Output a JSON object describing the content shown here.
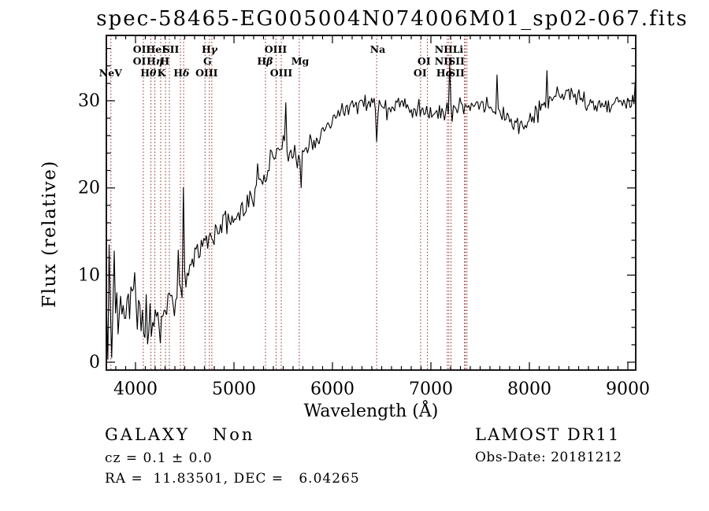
{
  "title": "spec-58465-EG005004N074006M01_sp02-067.fits",
  "footer": {
    "class_label": "GALAXY   Non",
    "cz_label": "cz = 0.1 ± 0.0",
    "radec_label": "RA =  11.83501, DEC =   6.04265",
    "survey": "LAMOST DR11",
    "obsdate": "Obs-Date: 20181212"
  },
  "colors": {
    "trace": "#000000",
    "line_marker": "#8b2424",
    "axis": "#000000",
    "background": "#ffffff"
  },
  "chart_data": {
    "type": "line",
    "title": "spec-58465-EG005004N074006M01_sp02-067.fits",
    "xlabel": "Wavelength (Å)",
    "ylabel": "Flux (relative)",
    "xlim": [
      3704,
      9080
    ],
    "ylim": [
      -0.9,
      37.5
    ],
    "xticks": [
      4000,
      5000,
      6000,
      7000,
      8000,
      9000
    ],
    "yticks": [
      0,
      10,
      20,
      30
    ],
    "x_minor_step": 100,
    "y_minor_step": 2,
    "grid": false,
    "legend": "none",
    "seed": 987123,
    "spectral_vlines": [
      3750,
      4079,
      4157,
      4197,
      4256,
      4305,
      4344,
      4456,
      4489,
      4706,
      4750,
      4775,
      5320,
      5427,
      5480,
      5663,
      6449,
      6895,
      6965,
      7166,
      7182,
      7204,
      7341,
      7351,
      7366
    ],
    "spectral_labels": [
      {
        "text": "OII",
        "row": 1,
        "x": 4064
      },
      {
        "text": "HeI",
        "row": 1,
        "x": 4210
      },
      {
        "text": "SII",
        "row": 1,
        "x": 4360
      },
      {
        "text": "Hγ",
        "row": 1,
        "x": 4752
      },
      {
        "text": "OIII",
        "row": 1,
        "x": 5424
      },
      {
        "text": "Na",
        "row": 1,
        "x": 6460
      },
      {
        "text": "NII",
        "row": 1,
        "x": 7130
      },
      {
        "text": "Li",
        "row": 1,
        "x": 7275
      },
      {
        "text": "OI",
        "row": 2,
        "x": 4040
      },
      {
        "text": "Hη",
        "row": 2,
        "x": 4195
      },
      {
        "text": "H",
        "row": 2,
        "x": 4298
      },
      {
        "text": "G",
        "row": 2,
        "x": 4730
      },
      {
        "text": "Hβ",
        "row": 2,
        "x": 5315
      },
      {
        "text": "Mg",
        "row": 2,
        "x": 5672
      },
      {
        "text": "OI",
        "row": 2,
        "x": 6930
      },
      {
        "text": "NII",
        "row": 2,
        "x": 7130
      },
      {
        "text": "SII",
        "row": 2,
        "x": 7260
      },
      {
        "text": "NeV",
        "row": 3,
        "x": 3746
      },
      {
        "text": "Hθ",
        "row": 3,
        "x": 4130
      },
      {
        "text": "K",
        "row": 3,
        "x": 4264
      },
      {
        "text": "Hδ",
        "row": 3,
        "x": 4466
      },
      {
        "text": "OIII",
        "row": 3,
        "x": 4722
      },
      {
        "text": "OIII",
        "row": 3,
        "x": 5480
      },
      {
        "text": "OI",
        "row": 3,
        "x": 6890
      },
      {
        "text": "Hα",
        "row": 3,
        "x": 7140
      },
      {
        "text": "SII",
        "row": 3,
        "x": 7260
      }
    ],
    "envelope": [
      [
        3710,
        5.5,
        5.5
      ],
      [
        3760,
        6.5,
        4.5
      ],
      [
        3820,
        7.0,
        3.2
      ],
      [
        3900,
        7.2,
        2.8
      ],
      [
        3990,
        6.8,
        2.6
      ],
      [
        4060,
        5.8,
        2.2
      ],
      [
        4130,
        5.2,
        2.2
      ],
      [
        4200,
        4.8,
        2.4
      ],
      [
        4270,
        5.2,
        2.2
      ],
      [
        4340,
        6.8,
        2.0
      ],
      [
        4400,
        7.8,
        1.8
      ],
      [
        4470,
        8.8,
        1.8
      ],
      [
        4540,
        10.5,
        1.5
      ],
      [
        4620,
        11.8,
        1.4
      ],
      [
        4700,
        13.2,
        1.5
      ],
      [
        4780,
        14.8,
        1.4
      ],
      [
        4860,
        15.6,
        1.3
      ],
      [
        4940,
        16.4,
        1.3
      ],
      [
        5020,
        16.8,
        1.3
      ],
      [
        5100,
        17.6,
        1.4
      ],
      [
        5180,
        19.2,
        1.5
      ],
      [
        5260,
        21.2,
        1.5
      ],
      [
        5330,
        22.3,
        1.4
      ],
      [
        5400,
        23.8,
        1.2
      ],
      [
        5470,
        24.6,
        1.1
      ],
      [
        5540,
        24.4,
        1.2
      ],
      [
        5610,
        24.0,
        1.3
      ],
      [
        5680,
        23.2,
        1.3
      ],
      [
        5750,
        24.8,
        1.3
      ],
      [
        5830,
        25.6,
        1.2
      ],
      [
        5910,
        26.6,
        1.1
      ],
      [
        6000,
        27.6,
        1.0
      ],
      [
        6100,
        28.6,
        0.9
      ],
      [
        6200,
        29.2,
        0.9
      ],
      [
        6300,
        29.6,
        0.9
      ],
      [
        6400,
        29.4,
        0.9
      ],
      [
        6500,
        29.0,
        0.85
      ],
      [
        6600,
        29.0,
        0.85
      ],
      [
        6700,
        29.5,
        0.8
      ],
      [
        6800,
        29.3,
        0.8
      ],
      [
        6900,
        28.9,
        0.8
      ],
      [
        7000,
        28.8,
        0.8
      ],
      [
        7100,
        28.9,
        0.8
      ],
      [
        7200,
        28.8,
        0.85
      ],
      [
        7300,
        29.1,
        0.8
      ],
      [
        7400,
        29.6,
        0.8
      ],
      [
        7500,
        29.4,
        0.8
      ],
      [
        7600,
        29.3,
        0.8
      ],
      [
        7700,
        28.6,
        0.8
      ],
      [
        7800,
        27.4,
        0.7
      ],
      [
        7900,
        26.9,
        0.7
      ],
      [
        8000,
        27.6,
        0.7
      ],
      [
        8100,
        29.2,
        0.9
      ],
      [
        8200,
        30.0,
        0.9
      ],
      [
        8300,
        30.6,
        0.9
      ],
      [
        8400,
        31.0,
        0.9
      ],
      [
        8500,
        30.6,
        0.9
      ],
      [
        8600,
        29.9,
        0.85
      ],
      [
        8700,
        29.5,
        0.85
      ],
      [
        8800,
        29.8,
        0.9
      ],
      [
        8900,
        29.9,
        0.9
      ],
      [
        9000,
        29.8,
        1.0
      ],
      [
        9080,
        30.5,
        1.0
      ]
    ],
    "features": [
      [
        3715,
        0.3
      ],
      [
        3737,
        13.5
      ],
      [
        3763,
        0.5
      ],
      [
        3790,
        12.8
      ],
      [
        4090,
        2.8
      ],
      [
        4250,
        2.2
      ],
      [
        4440,
        12.9
      ],
      [
        4480,
        20.1
      ],
      [
        5335,
        20.9
      ],
      [
        5520,
        29.8
      ],
      [
        5680,
        20.0
      ],
      [
        6449,
        25.3
      ],
      [
        7184,
        34.2
      ],
      [
        7210,
        27.6
      ],
      [
        7672,
        33.0
      ],
      [
        8184,
        33.5
      ],
      [
        9078,
        32.3
      ]
    ]
  }
}
